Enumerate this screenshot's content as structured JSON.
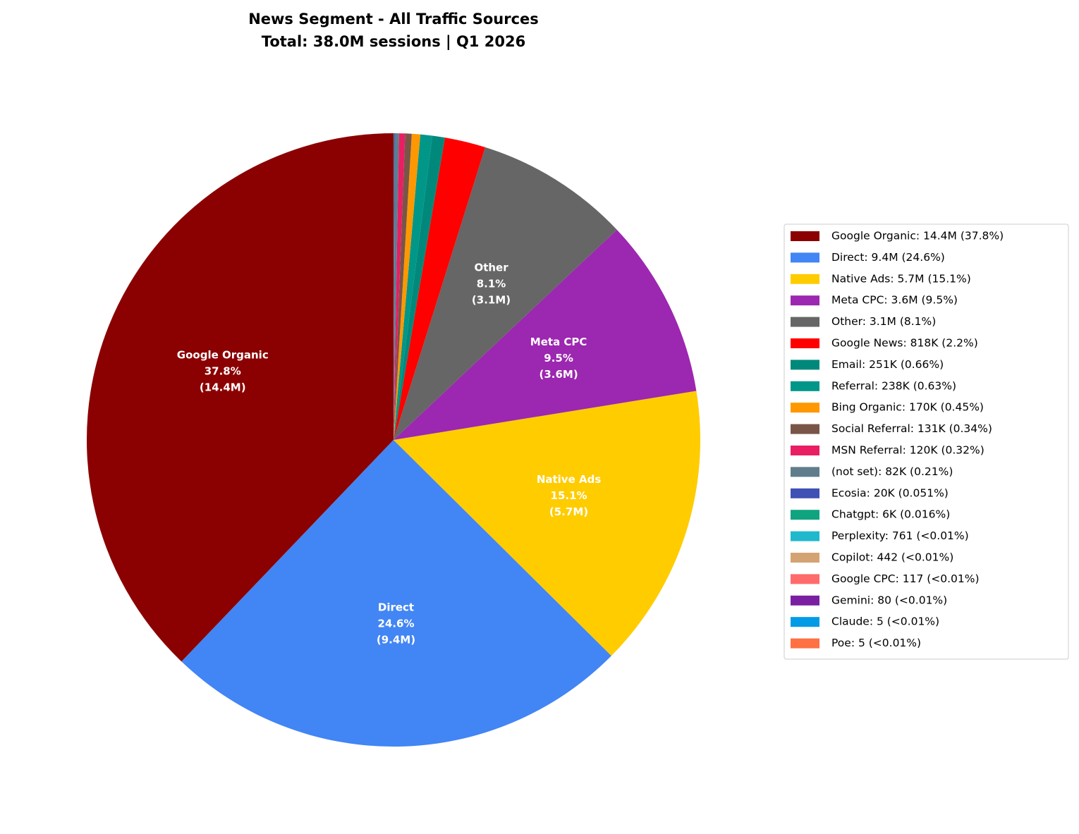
{
  "chart_data": {
    "type": "pie",
    "title": "News Segment - All Traffic Sources",
    "subtitle": "Total: 38.0M sessions | Q1 2026",
    "start_angle": 90,
    "direction": "counterclockwise",
    "categories": [
      "Google Organic",
      "Direct",
      "Native Ads",
      "Meta CPC",
      "Other",
      "Google News",
      "Email",
      "Referral",
      "Bing Organic",
      "Social Referral",
      "MSN Referral",
      "(not set)",
      "Ecosia",
      "Chatgpt",
      "Perplexity",
      "Copilot",
      "Google CPC",
      "Gemini",
      "Claude",
      "Poe"
    ],
    "values": [
      14400000,
      9400000,
      5700000,
      3600000,
      3100000,
      818000,
      251000,
      238000,
      170000,
      131000,
      120000,
      82000,
      20000,
      6000,
      761,
      442,
      117,
      80,
      5,
      5
    ],
    "colors": [
      "#8b0000",
      "#4285f4",
      "#ffcc00",
      "#9c27b0",
      "#666666",
      "#ff0000",
      "#00897b",
      "#009688",
      "#ff9800",
      "#795548",
      "#e91e63",
      "#607d8b",
      "#3f51b5",
      "#10a37f",
      "#20b8cd",
      "#d4a373",
      "#ff6b6b",
      "#7b1fa2",
      "#039be5",
      "#ff7043"
    ],
    "percent_labels": [
      "37.8%",
      "24.6%",
      "15.1%",
      "9.5%",
      "8.1%",
      null,
      null,
      null,
      null,
      null,
      null,
      null,
      null,
      null,
      null,
      null,
      null,
      null,
      null,
      null
    ],
    "value_labels": [
      "(14.4M)",
      "(9.4M)",
      "(5.7M)",
      "(3.6M)",
      "(3.1M)",
      null,
      null,
      null,
      null,
      null,
      null,
      null,
      null,
      null,
      null,
      null,
      null,
      null,
      null,
      null
    ],
    "legend_labels": [
      "Google Organic: 14.4M (37.8%)",
      "Direct: 9.4M (24.6%)",
      "Native Ads: 5.7M (15.1%)",
      "Meta CPC: 3.6M (9.5%)",
      "Other: 3.1M (8.1%)",
      "Google News: 818K (2.2%)",
      "Email: 251K (0.66%)",
      "Referral: 238K (0.63%)",
      "Bing Organic: 170K (0.45%)",
      "Social Referral: 131K (0.34%)",
      "MSN Referral: 120K (0.32%)",
      "(not set): 82K (0.21%)",
      "Ecosia: 20K (0.051%)",
      "Chatgpt: 6K (0.016%)",
      "Perplexity: 761 (<0.01%)",
      "Copilot: 442 (<0.01%)",
      "Google CPC: 117 (<0.01%)",
      "Gemini: 80 (<0.01%)",
      "Claude: 5 (<0.01%)",
      "Poe: 5 (<0.01%)"
    ],
    "legend_position": "right"
  }
}
